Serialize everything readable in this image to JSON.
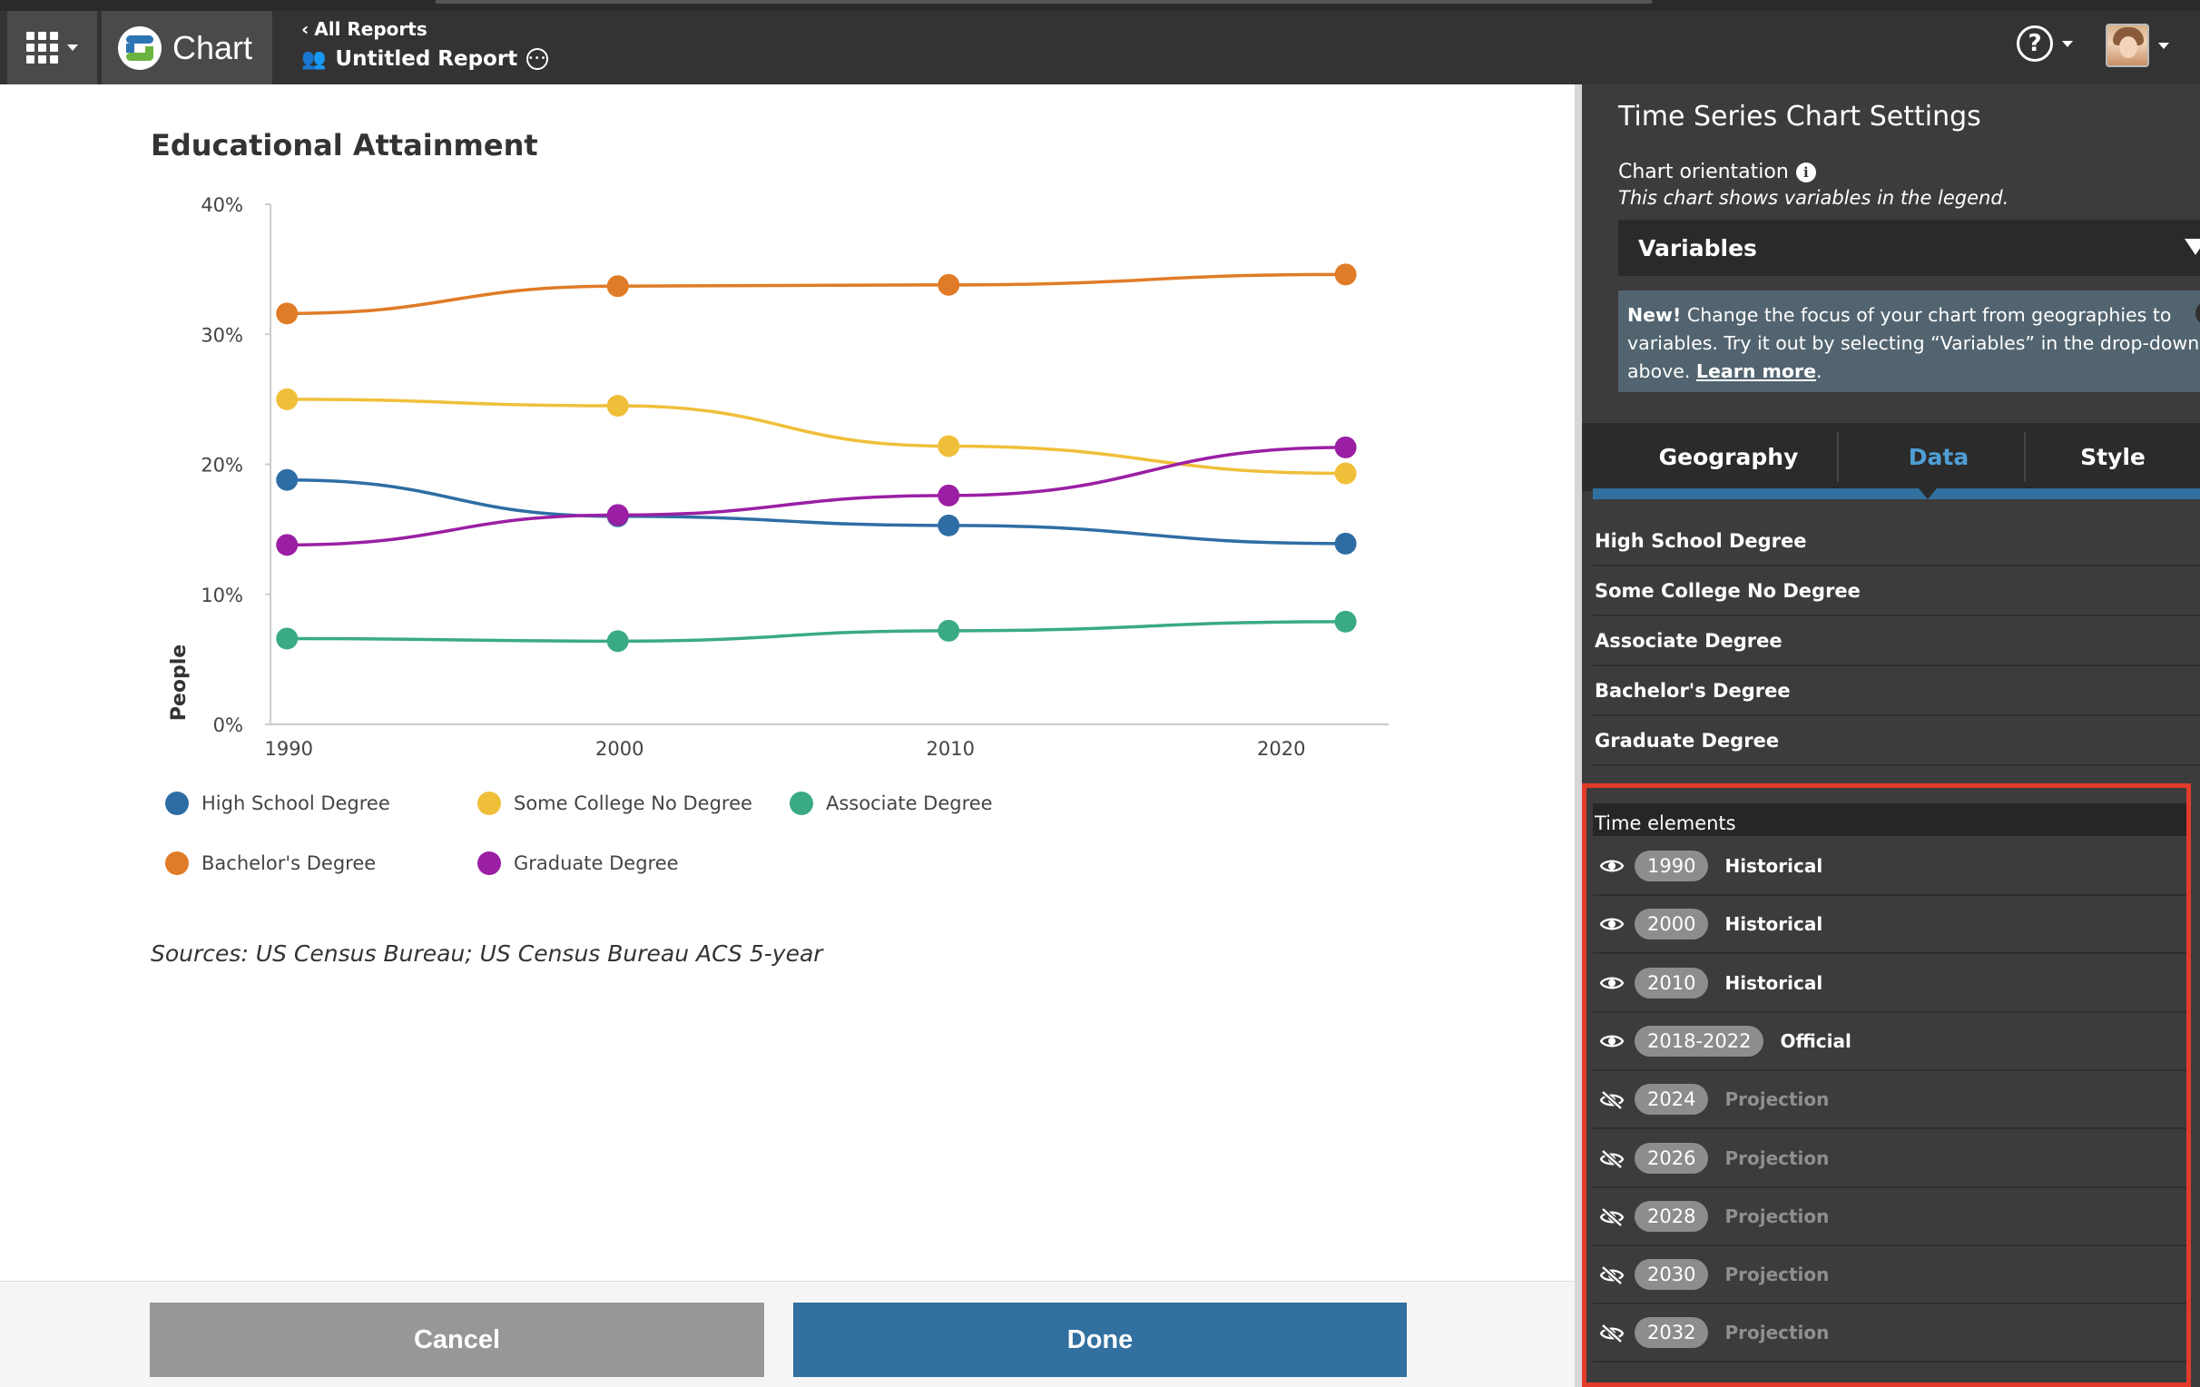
{
  "header": {
    "app_name": "Chart",
    "all_reports": "All Reports",
    "report_title": "Untitled Report",
    "help_label": "?"
  },
  "chart": {
    "title": "Educational Attainment",
    "sources": "Sources: US Census Bureau; US Census Bureau ACS 5-year"
  },
  "chart_data": {
    "type": "line",
    "title": "Educational Attainment",
    "ylabel": "People",
    "xlabel": "",
    "x": [
      1990,
      2000,
      2010,
      2022
    ],
    "x_ticks": [
      1990,
      2000,
      2010,
      2020
    ],
    "y_ticks": [
      "0%",
      "10%",
      "20%",
      "30%",
      "40%"
    ],
    "ylim": [
      0,
      40
    ],
    "xlim": [
      1989.5,
      2023.3
    ],
    "grid": false,
    "legend_position": "bottom",
    "series": [
      {
        "name": "High School Degree",
        "color": "#2e6da4",
        "values": [
          18.8,
          16.0,
          15.3,
          13.9
        ]
      },
      {
        "name": "Some College No Degree",
        "color": "#f0bf3a",
        "values": [
          25.0,
          24.5,
          21.4,
          19.3
        ]
      },
      {
        "name": "Associate Degree",
        "color": "#3aaa85",
        "values": [
          6.6,
          6.4,
          7.2,
          7.9
        ]
      },
      {
        "name": "Bachelor's Degree",
        "color": "#e07b27",
        "values": [
          31.6,
          33.7,
          33.8,
          34.6
        ]
      },
      {
        "name": "Graduate Degree",
        "color": "#9b1fa4",
        "values": [
          13.8,
          16.1,
          17.6,
          21.3
        ]
      }
    ]
  },
  "footer": {
    "cancel_label": "Cancel",
    "done_label": "Done"
  },
  "panel": {
    "title": "Time Series Chart Settings",
    "orientation_label": "Chart orientation",
    "orientation_note": "This chart shows variables in the legend.",
    "orientation_value": "Variables",
    "notice_new": "New!",
    "notice_text": " Change the focus of your chart from geographies to variables. Try it out by selecting “Variables” in the drop-down above. ",
    "notice_link": "Learn more",
    "notice_end": ".",
    "tabs": [
      "Geography",
      "Data",
      "Style"
    ],
    "variables": [
      "High School Degree",
      "Some College No Degree",
      "Associate Degree",
      "Bachelor's Degree",
      "Graduate Degree"
    ],
    "time_header": "Time elements",
    "time_elements": [
      {
        "year": "1990",
        "type": "Historical",
        "visible": true
      },
      {
        "year": "2000",
        "type": "Historical",
        "visible": true
      },
      {
        "year": "2010",
        "type": "Historical",
        "visible": true
      },
      {
        "year": "2018-2022",
        "type": "Official",
        "visible": true
      },
      {
        "year": "2024",
        "type": "Projection",
        "visible": false
      },
      {
        "year": "2026",
        "type": "Projection",
        "visible": false
      },
      {
        "year": "2028",
        "type": "Projection",
        "visible": false
      },
      {
        "year": "2030",
        "type": "Projection",
        "visible": false
      },
      {
        "year": "2032",
        "type": "Projection",
        "visible": false
      }
    ]
  }
}
